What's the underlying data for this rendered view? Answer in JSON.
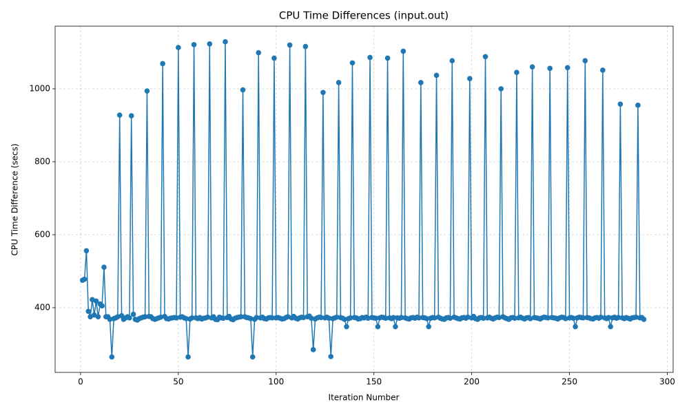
{
  "chart_data": {
    "type": "line",
    "title": "CPU Time Differences (input.out)",
    "x_label": "Iteration Number",
    "y_label": "CPU Time Difference (secs)",
    "x": [
      1,
      2,
      3,
      4,
      5,
      6,
      7,
      8,
      9,
      10,
      11,
      12,
      13,
      14,
      15,
      16,
      17,
      18,
      19,
      20,
      21,
      22,
      23,
      24,
      25,
      26,
      27,
      28,
      29,
      30,
      31,
      32,
      33,
      34,
      35,
      36,
      37,
      38,
      39,
      40,
      41,
      42,
      43,
      44,
      45,
      46,
      47,
      48,
      49,
      50,
      51,
      52,
      53,
      54,
      55,
      56,
      57,
      58,
      59,
      60,
      61,
      62,
      63,
      64,
      65,
      66,
      67,
      68,
      69,
      70,
      71,
      72,
      73,
      74,
      75,
      76,
      77,
      78,
      79,
      80,
      81,
      82,
      83,
      84,
      85,
      86,
      87,
      88,
      89,
      90,
      91,
      92,
      93,
      94,
      95,
      96,
      97,
      98,
      99,
      100,
      101,
      102,
      103,
      104,
      105,
      106,
      107,
      108,
      109,
      110,
      111,
      112,
      113,
      114,
      115,
      116,
      117,
      118,
      119,
      120,
      121,
      122,
      123,
      124,
      125,
      126,
      127,
      128,
      129,
      130,
      131,
      132,
      133,
      134,
      135,
      136,
      137,
      138,
      139,
      140,
      141,
      142,
      143,
      144,
      145,
      146,
      147,
      148,
      149,
      150,
      151,
      152,
      153,
      154,
      155,
      156,
      157,
      158,
      159,
      160,
      161,
      162,
      163,
      164,
      165,
      166,
      167,
      168,
      169,
      170,
      171,
      172,
      173,
      174,
      175,
      176,
      177,
      178,
      179,
      180,
      181,
      182,
      183,
      184,
      185,
      186,
      187,
      188,
      189,
      190,
      191,
      192,
      193,
      194,
      195,
      196,
      197,
      198,
      199,
      200,
      201,
      202,
      203,
      204,
      205,
      206,
      207,
      208,
      209,
      210,
      211,
      212,
      213,
      214,
      215,
      216,
      217,
      218,
      219,
      220,
      221,
      222,
      223,
      224,
      225,
      226,
      227,
      228,
      229,
      230,
      231,
      232,
      233,
      234,
      235,
      236,
      237,
      238,
      239,
      240,
      241,
      242,
      243,
      244,
      245,
      246,
      247,
      248,
      249,
      250,
      251,
      252,
      253,
      254,
      255,
      256,
      257,
      258,
      259,
      260,
      261,
      262,
      263,
      264,
      265,
      266,
      267,
      268,
      269,
      270,
      271,
      272,
      273,
      274,
      275,
      276,
      277,
      278,
      279,
      280,
      281,
      282,
      283,
      284,
      285,
      286,
      287,
      288
    ],
    "series": [
      {
        "name": "CPU Time Difference",
        "color": "#1f77b4",
        "values": [
          475,
          478,
          556,
          390,
          375,
          422,
          380,
          418,
          375,
          410,
          405,
          511,
          375,
          375,
          368,
          265,
          370,
          372,
          375,
          928,
          378,
          368,
          372,
          375,
          372,
          926,
          382,
          368,
          366,
          370,
          372,
          374,
          375,
          994,
          376,
          375,
          370,
          368,
          370,
          372,
          374,
          1069,
          376,
          370,
          369,
          371,
          372,
          373,
          372,
          1113,
          374,
          375,
          372,
          370,
          265,
          369,
          372,
          1121,
          372,
          370,
          373,
          369,
          371,
          372,
          374,
          1123,
          372,
          375,
          368,
          367,
          374,
          372,
          371,
          1129,
          373,
          376,
          369,
          367,
          371,
          373,
          374,
          375,
          997,
          375,
          373,
          372,
          370,
          265,
          368,
          373,
          1099,
          372,
          374,
          370,
          369,
          372,
          373,
          372,
          1084,
          372,
          373,
          371,
          369,
          370,
          373,
          375,
          1120,
          372,
          376,
          371,
          369,
          372,
          374,
          373,
          1116,
          375,
          377,
          371,
          285,
          369,
          372,
          374,
          373,
          990,
          372,
          374,
          371,
          266,
          370,
          372,
          374,
          1017,
          373,
          371,
          368,
          348,
          370,
          372,
          1071,
          373,
          372,
          369,
          370,
          373,
          372,
          374,
          371,
          1086,
          373,
          372,
          371,
          348,
          372,
          374,
          373,
          371,
          1084,
          372,
          370,
          373,
          348,
          372,
          371,
          373,
          1103,
          372,
          370,
          369,
          372,
          373,
          371,
          374,
          372,
          1017,
          373,
          372,
          370,
          348,
          371,
          373,
          372,
          1037,
          374,
          371,
          369,
          368,
          372,
          373,
          371,
          1077,
          374,
          372,
          370,
          369,
          372,
          373,
          371,
          374,
          1028,
          372,
          376,
          370,
          368,
          372,
          373,
          371,
          1088,
          372,
          374,
          371,
          369,
          372,
          374,
          373,
          1000,
          375,
          372,
          370,
          368,
          372,
          373,
          371,
          1045,
          372,
          374,
          371,
          369,
          372,
          373,
          370,
          1060,
          373,
          372,
          371,
          369,
          372,
          374,
          373,
          372,
          1056,
          373,
          372,
          371,
          369,
          372,
          374,
          373,
          370,
          1058,
          372,
          373,
          371,
          348,
          372,
          374,
          373,
          372,
          1077,
          373,
          372,
          370,
          369,
          372,
          373,
          371,
          374,
          1051,
          372,
          370,
          373,
          348,
          372,
          374,
          371,
          373,
          958,
          372,
          370,
          373,
          371,
          369,
          372,
          373,
          374,
          955,
          372,
          373,
          368
        ]
      }
    ],
    "xlim": [
      -13,
      303
    ],
    "xticks": [
      0,
      50,
      100,
      150,
      200,
      250,
      300
    ],
    "ylim": [
      222.6,
      1171.7
    ],
    "yticks": [
      400,
      600,
      800,
      1000
    ],
    "grid": true,
    "marker": "circle"
  }
}
